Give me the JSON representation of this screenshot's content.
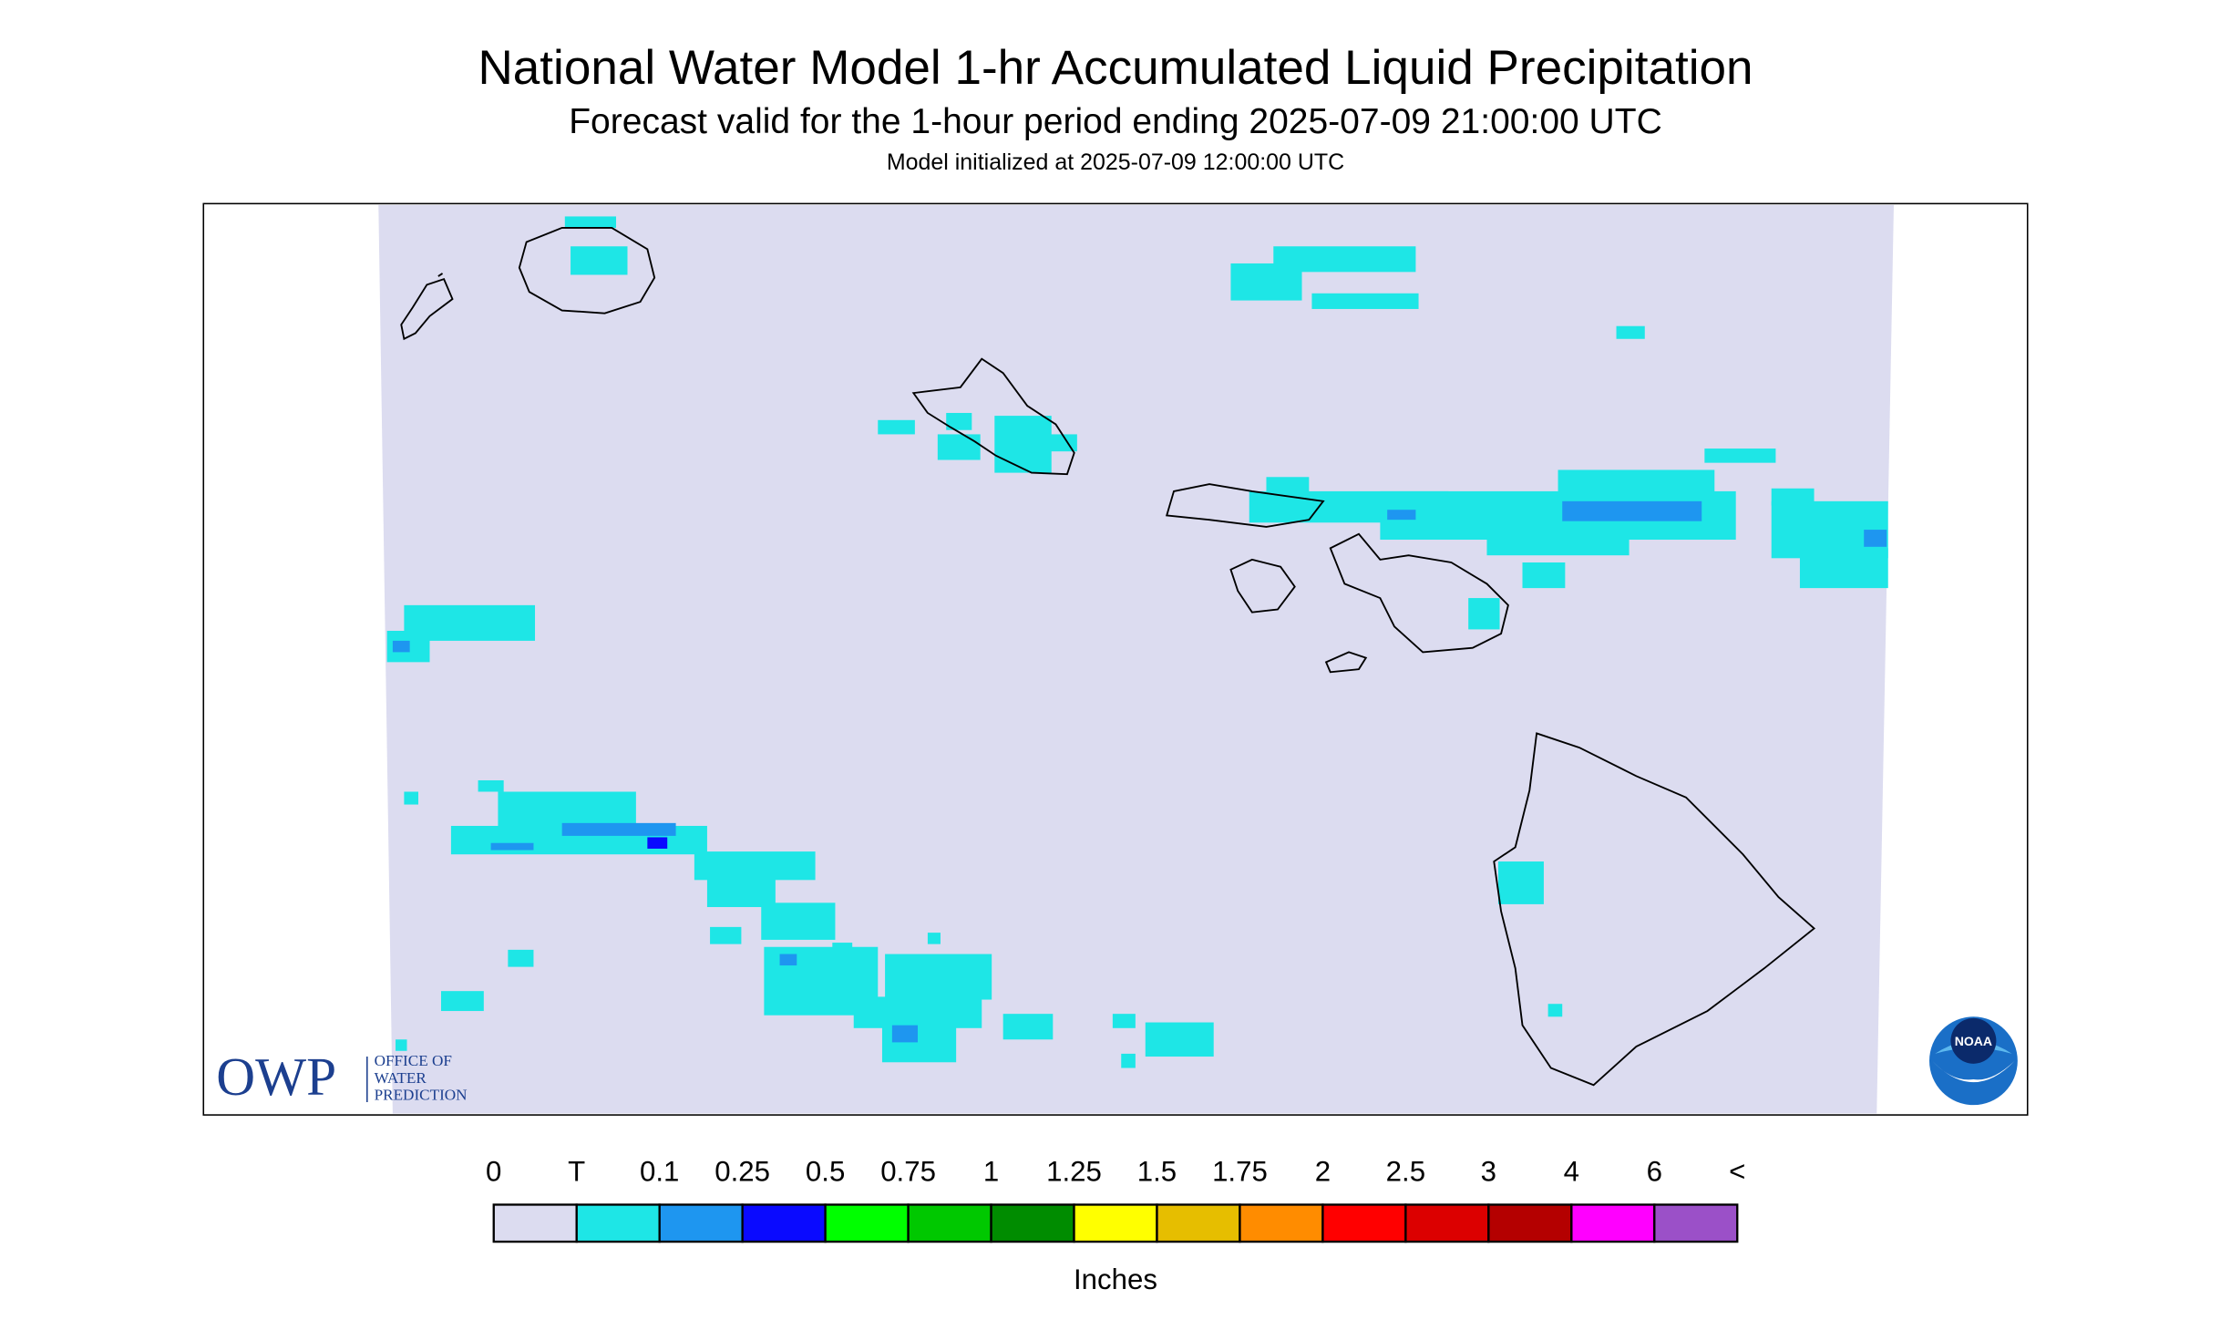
{
  "header": {
    "title": "National Water Model 1-hr Accumulated Liquid Precipitation",
    "subtitle": "Forecast valid for the 1-hour period ending 2025-07-09 21:00:00 UTC",
    "note": "Model initialized at 2025-07-09 12:00:00 UTC"
  },
  "legend": {
    "labels": [
      "0",
      "T",
      "0.1",
      "0.25",
      "0.5",
      "0.75",
      "1",
      "1.25",
      "1.5",
      "1.75",
      "2",
      "2.5",
      "3",
      "4",
      "6",
      "<"
    ],
    "colors": [
      "#dcdcf0",
      "#1ee6e6",
      "#1e96f0",
      "#0a0aff",
      "#00ff00",
      "#00c800",
      "#008c00",
      "#ffff00",
      "#e6be00",
      "#ff8c00",
      "#ff0000",
      "#dc0000",
      "#b40000",
      "#ff00ff",
      "#9b50c8"
    ],
    "units": "Inches"
  },
  "logos": {
    "owp": "OWP",
    "owp_lines": [
      "OFFICE OF",
      "WATER",
      "PREDICTION"
    ],
    "noaa": "NOAA"
  }
}
